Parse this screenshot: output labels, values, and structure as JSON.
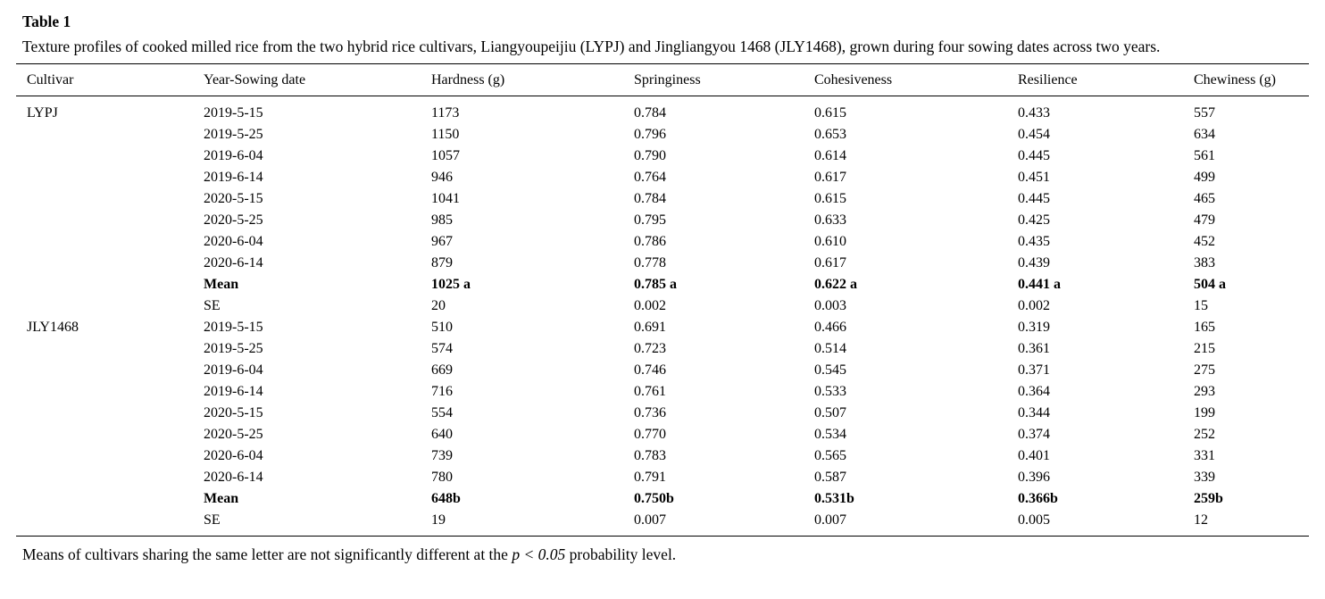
{
  "page": {
    "background": "#ffffff",
    "text_color": "#000000",
    "rule_color": "#000000"
  },
  "header": {
    "label": "Table 1",
    "caption": "Texture profiles of cooked milled rice from the two hybrid rice cultivars, Liangyoupeijiu (LYPJ) and Jingliangyou 1468 (JLY1468), grown during four sowing dates across two years."
  },
  "table": {
    "columns": [
      "Cultivar",
      "Year-Sowing date",
      "Hardness (g)",
      "Springiness",
      "Cohesiveness",
      "Resilience",
      "Chewiness (g)"
    ],
    "rows": [
      {
        "bold": false,
        "cells": [
          "LYPJ",
          "2019-5-15",
          "1173",
          "0.784",
          "0.615",
          "0.433",
          "557"
        ]
      },
      {
        "bold": false,
        "cells": [
          "",
          "2019-5-25",
          "1150",
          "0.796",
          "0.653",
          "0.454",
          "634"
        ]
      },
      {
        "bold": false,
        "cells": [
          "",
          "2019-6-04",
          "1057",
          "0.790",
          "0.614",
          "0.445",
          "561"
        ]
      },
      {
        "bold": false,
        "cells": [
          "",
          "2019-6-14",
          "946",
          "0.764",
          "0.617",
          "0.451",
          "499"
        ]
      },
      {
        "bold": false,
        "cells": [
          "",
          "2020-5-15",
          "1041",
          "0.784",
          "0.615",
          "0.445",
          "465"
        ]
      },
      {
        "bold": false,
        "cells": [
          "",
          "2020-5-25",
          "985",
          "0.795",
          "0.633",
          "0.425",
          "479"
        ]
      },
      {
        "bold": false,
        "cells": [
          "",
          "2020-6-04",
          "967",
          "0.786",
          "0.610",
          "0.435",
          "452"
        ]
      },
      {
        "bold": false,
        "cells": [
          "",
          "2020-6-14",
          "879",
          "0.778",
          "0.617",
          "0.439",
          "383"
        ]
      },
      {
        "bold": true,
        "cells": [
          "",
          "Mean",
          "1025 a",
          "0.785 a",
          "0.622 a",
          "0.441 a",
          "504 a"
        ]
      },
      {
        "bold": false,
        "cells": [
          "",
          "SE",
          "20",
          "0.002",
          "0.003",
          "0.002",
          "15"
        ]
      },
      {
        "bold": false,
        "cells": [
          "JLY1468",
          "2019-5-15",
          "510",
          "0.691",
          "0.466",
          "0.319",
          "165"
        ]
      },
      {
        "bold": false,
        "cells": [
          "",
          "2019-5-25",
          "574",
          "0.723",
          "0.514",
          "0.361",
          "215"
        ]
      },
      {
        "bold": false,
        "cells": [
          "",
          "2019-6-04",
          "669",
          "0.746",
          "0.545",
          "0.371",
          "275"
        ]
      },
      {
        "bold": false,
        "cells": [
          "",
          "2019-6-14",
          "716",
          "0.761",
          "0.533",
          "0.364",
          "293"
        ]
      },
      {
        "bold": false,
        "cells": [
          "",
          "2020-5-15",
          "554",
          "0.736",
          "0.507",
          "0.344",
          "199"
        ]
      },
      {
        "bold": false,
        "cells": [
          "",
          "2020-5-25",
          "640",
          "0.770",
          "0.534",
          "0.374",
          "252"
        ]
      },
      {
        "bold": false,
        "cells": [
          "",
          "2020-6-04",
          "739",
          "0.783",
          "0.565",
          "0.401",
          "331"
        ]
      },
      {
        "bold": false,
        "cells": [
          "",
          "2020-6-14",
          "780",
          "0.791",
          "0.587",
          "0.396",
          "339"
        ]
      },
      {
        "bold": true,
        "cells": [
          "",
          "Mean",
          "648b",
          "0.750b",
          "0.531b",
          "0.366b",
          "259b"
        ]
      },
      {
        "bold": false,
        "cells": [
          "",
          "SE",
          "19",
          "0.007",
          "0.007",
          "0.005",
          "12"
        ]
      }
    ]
  },
  "footnote": {
    "prefix": "Means of cultivars sharing the same letter are not significantly different at the ",
    "italic": "p < 0.05",
    "suffix": " probability level."
  },
  "chart_data": {
    "type": "table",
    "title": "Table 1. Texture profiles of cooked milled rice from two hybrid rice cultivars (LYPJ, JLY1468) across four sowing dates in two years",
    "columns": [
      "Cultivar",
      "Year-Sowing date",
      "Hardness (g)",
      "Springiness",
      "Cohesiveness",
      "Resilience",
      "Chewiness (g)"
    ],
    "groups": [
      {
        "cultivar": "LYPJ",
        "rows": [
          [
            "2019-5-15",
            1173,
            0.784,
            0.615,
            0.433,
            557
          ],
          [
            "2019-5-25",
            1150,
            0.796,
            0.653,
            0.454,
            634
          ],
          [
            "2019-6-04",
            1057,
            0.79,
            0.614,
            0.445,
            561
          ],
          [
            "2019-6-14",
            946,
            0.764,
            0.617,
            0.451,
            499
          ],
          [
            "2020-5-15",
            1041,
            0.784,
            0.615,
            0.445,
            465
          ],
          [
            "2020-5-25",
            985,
            0.795,
            0.633,
            0.425,
            479
          ],
          [
            "2020-6-04",
            967,
            0.786,
            0.61,
            0.435,
            452
          ],
          [
            "2020-6-14",
            879,
            0.778,
            0.617,
            0.439,
            383
          ]
        ],
        "mean": [
          "1025 a",
          "0.785 a",
          "0.622 a",
          "0.441 a",
          "504 a"
        ],
        "se": [
          20,
          0.002,
          0.003,
          0.002,
          15
        ]
      },
      {
        "cultivar": "JLY1468",
        "rows": [
          [
            "2019-5-15",
            510,
            0.691,
            0.466,
            0.319,
            165
          ],
          [
            "2019-5-25",
            574,
            0.723,
            0.514,
            0.361,
            215
          ],
          [
            "2019-6-04",
            669,
            0.746,
            0.545,
            0.371,
            275
          ],
          [
            "2019-6-14",
            716,
            0.761,
            0.533,
            0.364,
            293
          ],
          [
            "2020-5-15",
            554,
            0.736,
            0.507,
            0.344,
            199
          ],
          [
            "2020-5-25",
            640,
            0.77,
            0.534,
            0.374,
            252
          ],
          [
            "2020-6-04",
            739,
            0.783,
            0.565,
            0.401,
            331
          ],
          [
            "2020-6-14",
            780,
            0.791,
            0.587,
            0.396,
            339
          ]
        ],
        "mean": [
          "648b",
          "0.750b",
          "0.531b",
          "0.366b",
          "259b"
        ],
        "se": [
          19,
          0.007,
          0.007,
          0.005,
          12
        ]
      }
    ]
  }
}
